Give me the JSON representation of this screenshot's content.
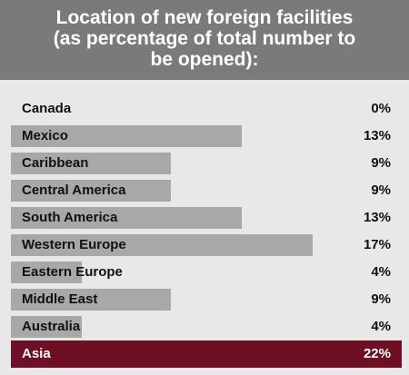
{
  "chart_data": {
    "type": "bar",
    "title_lines": [
      "Location of  new foreign facilities",
      "(as percentage of total number to",
      "be opened):"
    ],
    "categories": [
      "Canada",
      "Mexico",
      "Caribbean",
      "Central America",
      "South America",
      "Western Europe",
      "Eastern Europe",
      "Middle East",
      "Australia",
      "Asia"
    ],
    "values": [
      0,
      13,
      9,
      9,
      13,
      17,
      4,
      9,
      4,
      22
    ],
    "value_labels": [
      "0%",
      "13%",
      "9%",
      "9%",
      "13%",
      "17%",
      "4%",
      "9%",
      "4%",
      "22%"
    ],
    "unit": "%",
    "xlim": [
      0,
      22
    ],
    "highlight": "Asia",
    "colors": {
      "header": "#7a7a7a",
      "bar": "#a8a8a8",
      "highlight": "#6e0f25",
      "background": "#e8e8e8"
    }
  }
}
